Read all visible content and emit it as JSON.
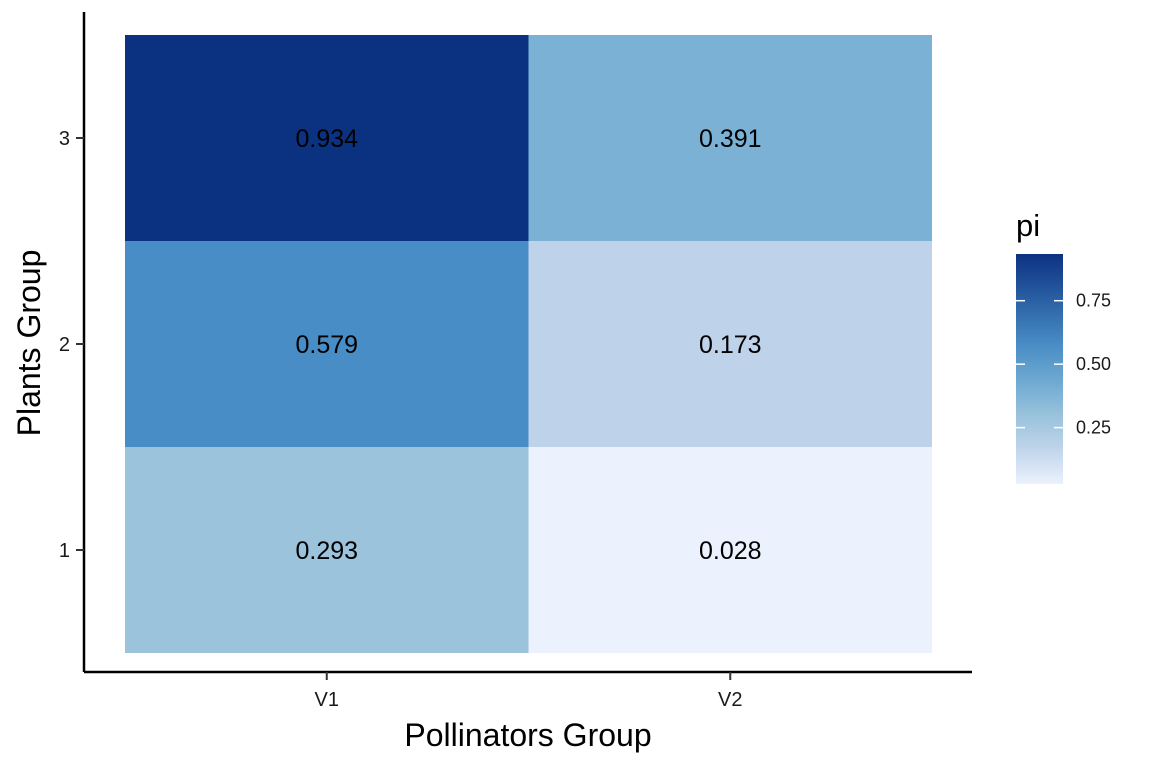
{
  "chart_data": {
    "type": "heatmap",
    "xlabel": "Pollinators Group",
    "ylabel": "Plants Group",
    "x_categories": [
      "V1",
      "V2"
    ],
    "y_categories": [
      "1",
      "2",
      "3"
    ],
    "cells": [
      {
        "x": "V1",
        "y": "1",
        "value": 0.293,
        "label": "0.293"
      },
      {
        "x": "V2",
        "y": "1",
        "value": 0.028,
        "label": "0.028"
      },
      {
        "x": "V1",
        "y": "2",
        "value": 0.579,
        "label": "0.579"
      },
      {
        "x": "V2",
        "y": "2",
        "value": 0.173,
        "label": "0.173"
      },
      {
        "x": "V1",
        "y": "3",
        "value": 0.934,
        "label": "0.934"
      },
      {
        "x": "V2",
        "y": "3",
        "value": 0.391,
        "label": "0.391"
      }
    ],
    "legend": {
      "title": "pi",
      "placement": "right",
      "range": [
        0.028,
        0.934
      ],
      "ticks": [
        {
          "value": 0.25,
          "label": "0.25"
        },
        {
          "value": 0.5,
          "label": "0.50"
        },
        {
          "value": 0.75,
          "label": "0.75"
        }
      ],
      "color_low": "#ebf1fd",
      "color_high": "#0b3181",
      "color_scale": [
        {
          "value": 0.028,
          "color": "#ebf1fd"
        },
        {
          "value": 0.173,
          "color": "#bed3ea"
        },
        {
          "value": 0.293,
          "color": "#9bc3dc"
        },
        {
          "value": 0.391,
          "color": "#7ab1d5"
        },
        {
          "value": 0.579,
          "color": "#488dc5"
        },
        {
          "value": 0.934,
          "color": "#0b3181"
        }
      ]
    },
    "grid": false
  }
}
